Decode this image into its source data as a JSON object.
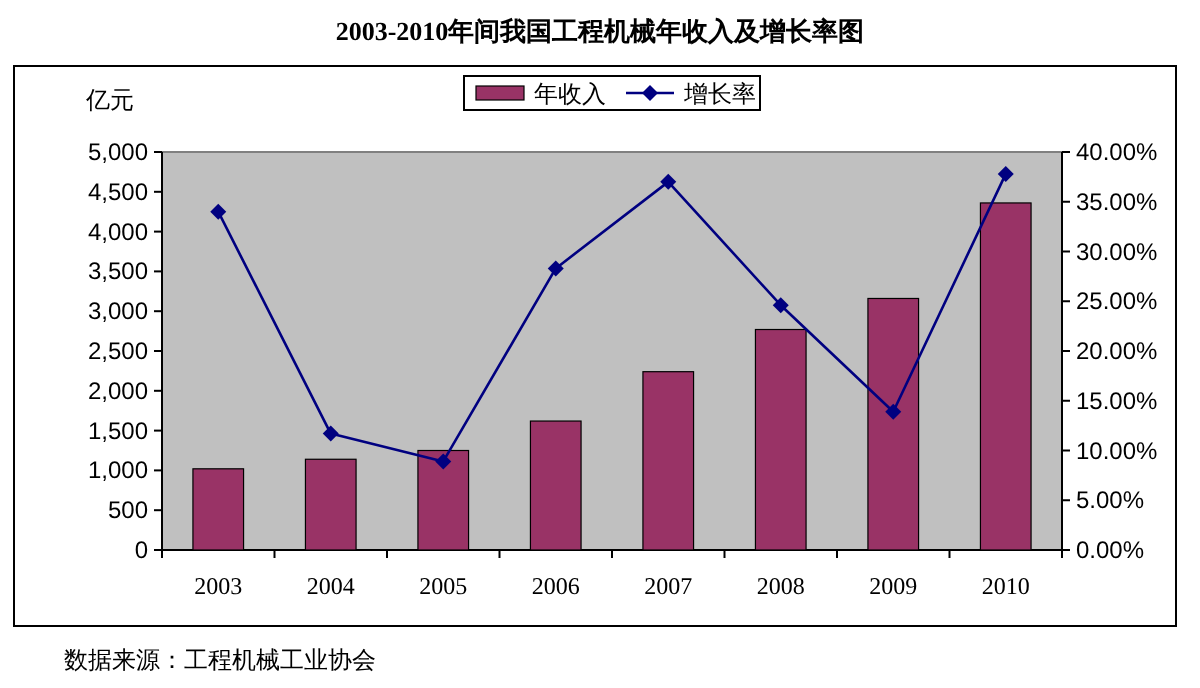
{
  "chart_data": {
    "type": "bar",
    "title": "2003-2010年间我国工程机械年收入及增长率图",
    "ylabel": "亿元",
    "annotations": [
      "数据来源：工程机械工业协会"
    ],
    "categories": [
      "2003",
      "2004",
      "2005",
      "2006",
      "2007",
      "2008",
      "2009",
      "2010"
    ],
    "series": [
      {
        "name": "年收入",
        "color": "#993366",
        "values": [
          1020,
          1140,
          1250,
          1620,
          2240,
          2770,
          3160,
          4360
        ]
      },
      {
        "name": "增长率",
        "type": "line",
        "axis": "y2",
        "color": "#000080",
        "marker": "diamond",
        "values": [
          34.0,
          11.7,
          8.9,
          28.3,
          37.0,
          24.6,
          13.9,
          37.8
        ]
      }
    ],
    "ylim": [
      0,
      5000
    ],
    "yticks": [
      0,
      500,
      {
        "value": 1000,
        "label": "1,000"
      },
      {
        "value": 1500,
        "label": "1,500"
      },
      {
        "value": 2000,
        "label": "2,000"
      },
      {
        "value": 2500,
        "label": "2,500"
      },
      {
        "value": 3000,
        "label": "3,000"
      },
      {
        "value": 3500,
        "label": "3,500"
      },
      {
        "value": 4000,
        "label": "4,000"
      },
      {
        "value": 4500,
        "label": "4,500"
      },
      {
        "value": 5000,
        "label": "5,000"
      }
    ],
    "y2lim": [
      0,
      40
    ],
    "y2ticks": [
      {
        "value": 0,
        "label": "0.00%"
      },
      {
        "value": 5,
        "label": "5.00%"
      },
      {
        "value": 10,
        "label": "10.00%"
      },
      {
        "value": 15,
        "label": "15.00%"
      },
      {
        "value": 20,
        "label": "20.00%"
      },
      {
        "value": 25,
        "label": "25.00%"
      },
      {
        "value": 30,
        "label": "30.00%"
      },
      {
        "value": 35,
        "label": "35.00%"
      },
      {
        "value": 40,
        "label": "40.00%"
      }
    ],
    "grid": false,
    "legend": "top"
  }
}
